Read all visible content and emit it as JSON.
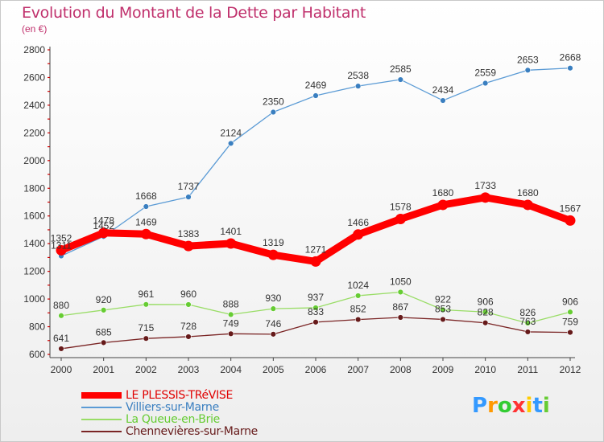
{
  "chart_data": {
    "type": "line",
    "title": "Evolution du Montant de la Dette par Habitant",
    "subtitle": "(en €)",
    "xlabel": "",
    "ylabel": "",
    "x": [
      2000,
      2001,
      2002,
      2003,
      2004,
      2005,
      2006,
      2007,
      2008,
      2009,
      2010,
      2011,
      2012
    ],
    "ylim": [
      600,
      2800
    ],
    "yticks": [
      600,
      800,
      1000,
      1200,
      1400,
      1600,
      1800,
      2000,
      2200,
      2400,
      2600,
      2800
    ],
    "grid": false,
    "legend_position": "bottom-left",
    "series": [
      {
        "name": "LE PLESSIS-TRéVISE",
        "color": "#ff0000",
        "emphasis": true,
        "values": [
          1352,
          1478,
          1469,
          1383,
          1401,
          1319,
          1271,
          1466,
          1578,
          1680,
          1733,
          1680,
          1567
        ]
      },
      {
        "name": "Villiers-sur-Marne",
        "color": "#5b9bd5",
        "marker_color": "#3a7fc0",
        "values": [
          1311,
          1452,
          1668,
          1737,
          2124,
          2350,
          2469,
          2538,
          2585,
          2434,
          2559,
          2653,
          2668
        ]
      },
      {
        "name": "La Queue-en-Brie",
        "color": "#99dd66",
        "marker_color": "#66cc33",
        "values": [
          880,
          920,
          961,
          960,
          888,
          930,
          937,
          1024,
          1050,
          922,
          906,
          826,
          906
        ]
      },
      {
        "name": "Chennevières-sur-Marne",
        "color": "#7a2424",
        "marker_color": "#661a1a",
        "values": [
          641,
          685,
          715,
          728,
          749,
          746,
          833,
          852,
          867,
          853,
          828,
          763,
          759
        ]
      }
    ]
  },
  "logo": {
    "letters": [
      "P",
      "r",
      "o",
      "x",
      "i",
      "t",
      "i"
    ],
    "colors": [
      "#3399ff",
      "#ff9900",
      "#33cc33",
      "#ff3333",
      "#ffcc00",
      "#3399ff",
      "#66cc33"
    ]
  }
}
